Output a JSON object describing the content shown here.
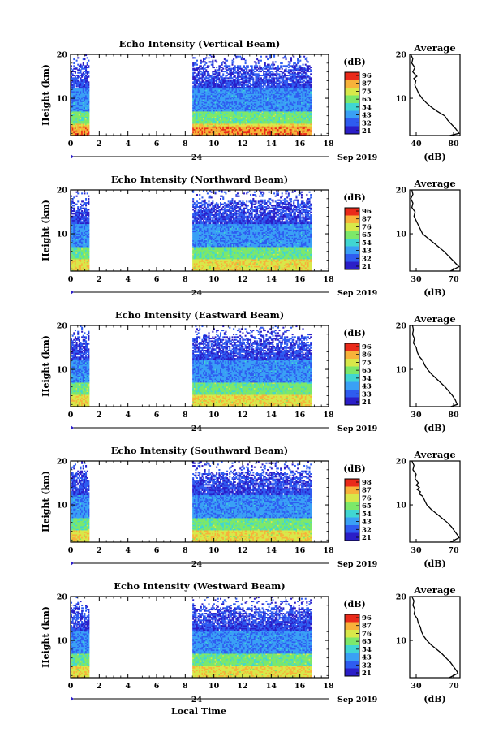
{
  "figure": {
    "xlabel": "Local Time",
    "date_label": "Sep 2019",
    "day_label": "24",
    "colorbar_unit": "(dB)",
    "profile_title": "Average",
    "profile_xlabel": "(dB)",
    "ylabel": "Height (km)"
  },
  "colors": {
    "colormap": [
      "#2b1ec8",
      "#2f5cf0",
      "#3aa0f5",
      "#41d6d2",
      "#7de86a",
      "#d8e84a",
      "#f7b23a",
      "#ea2a1a"
    ]
  },
  "chart_data": [
    {
      "type": "heatmap",
      "title": "Echo Intensity (Vertical Beam)",
      "ylabel": "Height (km)",
      "xlim": [
        0,
        18
      ],
      "ylim": [
        1.5,
        20
      ],
      "x_ticks": [
        "0",
        "2",
        "4",
        "6",
        "8",
        "10",
        "12",
        "14",
        "16",
        "18"
      ],
      "y_ticks": [
        "20",
        "10"
      ],
      "colorbar_ticks": [
        "96",
        "87",
        "75",
        "65",
        "54",
        "43",
        "32",
        "21"
      ],
      "data_segments": [
        [
          0,
          1.3
        ],
        [
          8.5,
          16.8
        ]
      ],
      "profile": {
        "title": "Average",
        "xlabel": "(dB)",
        "xlim": [
          33,
          82
        ],
        "x_ticks": [
          "40",
          "80"
        ],
        "y_ticks": [
          "20",
          "10"
        ],
        "points": [
          [
            34,
            20
          ],
          [
            36,
            19
          ],
          [
            35,
            18
          ],
          [
            38,
            17
          ],
          [
            36,
            16
          ],
          [
            40,
            15
          ],
          [
            37,
            14.5
          ],
          [
            39,
            14
          ],
          [
            38,
            13
          ],
          [
            40,
            12
          ],
          [
            42,
            11
          ],
          [
            45,
            10
          ],
          [
            49,
            9
          ],
          [
            54,
            8
          ],
          [
            60,
            7
          ],
          [
            67,
            6
          ],
          [
            70,
            5
          ],
          [
            74,
            4
          ],
          [
            78,
            3
          ],
          [
            81,
            2
          ],
          [
            72,
            1.5
          ]
        ]
      }
    },
    {
      "type": "heatmap",
      "title": "Echo Intensity (Northward Beam)",
      "ylabel": "Height (km)",
      "xlim": [
        0,
        18
      ],
      "ylim": [
        1.5,
        20
      ],
      "x_ticks": [
        "0",
        "2",
        "4",
        "6",
        "8",
        "10",
        "12",
        "14",
        "16",
        "18"
      ],
      "y_ticks": [
        "20",
        "10"
      ],
      "colorbar_ticks": [
        "96",
        "87",
        "76",
        "65",
        "54",
        "43",
        "32",
        "21"
      ],
      "data_segments": [
        [
          0,
          1.3
        ],
        [
          8.5,
          16.8
        ]
      ],
      "profile": {
        "title": "Average",
        "xlabel": "(dB)",
        "xlim": [
          28,
          75
        ],
        "x_ticks": [
          "30",
          "70"
        ],
        "y_ticks": [
          "20",
          "10"
        ],
        "points": [
          [
            30,
            20
          ],
          [
            31,
            19
          ],
          [
            29,
            18
          ],
          [
            31,
            17
          ],
          [
            30,
            16
          ],
          [
            33,
            15
          ],
          [
            32,
            14
          ],
          [
            34,
            13
          ],
          [
            36,
            12
          ],
          [
            38,
            11
          ],
          [
            40,
            10
          ],
          [
            45,
            9
          ],
          [
            50,
            8
          ],
          [
            55,
            7
          ],
          [
            60,
            6
          ],
          [
            64,
            5
          ],
          [
            68,
            4
          ],
          [
            72,
            3
          ],
          [
            74,
            2.5
          ],
          [
            66,
            1.5
          ]
        ]
      }
    },
    {
      "type": "heatmap",
      "title": "Echo Intensity (Eastward Beam)",
      "ylabel": "Height (km)",
      "xlim": [
        0,
        18
      ],
      "ylim": [
        1.5,
        20
      ],
      "x_ticks": [
        "0",
        "2",
        "4",
        "6",
        "8",
        "10",
        "12",
        "14",
        "16",
        "18"
      ],
      "y_ticks": [
        "20",
        "10"
      ],
      "colorbar_ticks": [
        "96",
        "86",
        "75",
        "65",
        "54",
        "43",
        "33",
        "21"
      ],
      "data_segments": [
        [
          0,
          1.3
        ],
        [
          8.5,
          16.8
        ]
      ],
      "profile": {
        "title": "Average",
        "xlabel": "(dB)",
        "xlim_labels": [
          "30",
          "80"
        ],
        "x_ticks": [
          "30",
          "80"
        ],
        "y_ticks": [
          "20",
          "10"
        ],
        "points": [
          [
            31,
            20
          ],
          [
            32,
            19
          ],
          [
            31,
            18
          ],
          [
            33,
            17
          ],
          [
            32,
            16
          ],
          [
            35,
            15
          ],
          [
            36,
            14
          ],
          [
            38,
            13
          ],
          [
            40,
            12.5
          ],
          [
            42,
            12
          ],
          [
            44,
            11
          ],
          [
            47,
            10
          ],
          [
            51,
            9
          ],
          [
            56,
            8
          ],
          [
            61,
            7
          ],
          [
            66,
            6
          ],
          [
            70,
            5
          ],
          [
            74,
            4
          ],
          [
            77,
            3
          ],
          [
            79,
            2
          ],
          [
            72,
            1.5
          ]
        ]
      }
    },
    {
      "type": "heatmap",
      "title": "Echo Intensity (Southward Beam)",
      "ylabel": "Height (km)",
      "xlim": [
        0,
        18
      ],
      "ylim": [
        1.5,
        20
      ],
      "x_ticks": [
        "0",
        "2",
        "4",
        "6",
        "8",
        "10",
        "12",
        "14",
        "16",
        "18"
      ],
      "y_ticks": [
        "20",
        "10"
      ],
      "colorbar_ticks": [
        "98",
        "87",
        "76",
        "65",
        "54",
        "43",
        "32",
        "21"
      ],
      "data_segments": [
        [
          0,
          1.3
        ],
        [
          8.5,
          16.8
        ]
      ],
      "profile": {
        "title": "Average",
        "xlabel": "(dB)",
        "xlim": [
          28,
          75
        ],
        "x_ticks": [
          "30",
          "70"
        ],
        "y_ticks": [
          "20",
          "10"
        ],
        "points": [
          [
            30,
            20
          ],
          [
            32,
            19
          ],
          [
            31,
            18
          ],
          [
            34,
            17
          ],
          [
            33,
            16
          ],
          [
            36,
            15
          ],
          [
            34,
            14.5
          ],
          [
            37,
            14
          ],
          [
            35,
            13.5
          ],
          [
            38,
            13
          ],
          [
            37,
            12.5
          ],
          [
            40,
            12
          ],
          [
            42,
            11
          ],
          [
            44,
            10
          ],
          [
            48,
            9
          ],
          [
            53,
            8
          ],
          [
            58,
            7
          ],
          [
            63,
            6
          ],
          [
            67,
            5
          ],
          [
            70,
            4
          ],
          [
            73,
            3
          ],
          [
            74,
            2.5
          ],
          [
            66,
            1.5
          ]
        ]
      }
    },
    {
      "type": "heatmap",
      "title": "Echo Intensity (Westward Beam)",
      "ylabel": "Height (km)",
      "xlim": [
        0,
        18
      ],
      "ylim": [
        1.5,
        20
      ],
      "x_ticks": [
        "0",
        "2",
        "4",
        "6",
        "8",
        "10",
        "12",
        "14",
        "16",
        "18"
      ],
      "y_ticks": [
        "20",
        "10"
      ],
      "colorbar_ticks": [
        "96",
        "87",
        "76",
        "65",
        "54",
        "43",
        "32",
        "21"
      ],
      "data_segments": [
        [
          0,
          1.3
        ],
        [
          8.5,
          16.8
        ]
      ],
      "profile": {
        "title": "Average",
        "xlabel": "(dB)",
        "xlim": [
          28,
          75
        ],
        "x_ticks": [
          "30",
          "70"
        ],
        "y_ticks": [
          "20",
          "10"
        ],
        "points": [
          [
            30,
            20
          ],
          [
            32,
            19
          ],
          [
            31,
            18
          ],
          [
            33,
            17
          ],
          [
            32,
            16
          ],
          [
            35,
            15
          ],
          [
            36,
            14
          ],
          [
            38,
            13
          ],
          [
            39,
            12
          ],
          [
            41,
            11
          ],
          [
            44,
            10
          ],
          [
            48,
            9
          ],
          [
            53,
            8
          ],
          [
            58,
            7
          ],
          [
            62,
            6
          ],
          [
            66,
            5
          ],
          [
            69,
            4
          ],
          [
            72,
            3
          ],
          [
            73,
            2.5
          ],
          [
            65,
            1.5
          ]
        ]
      }
    }
  ]
}
